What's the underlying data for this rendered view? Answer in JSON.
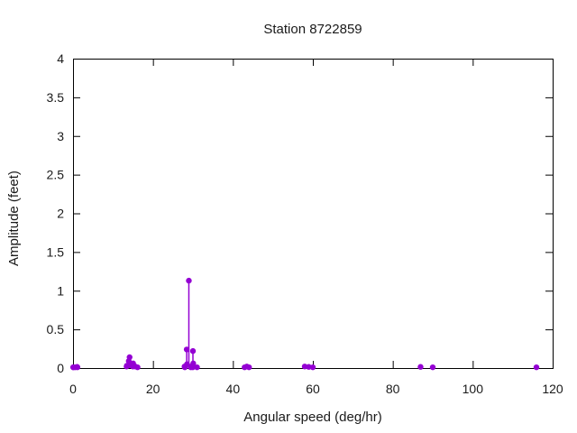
{
  "chart_data": {
    "type": "scatter",
    "style": "impulses+points",
    "title": "Station 8722859",
    "xlabel": "Angular speed (deg/hr)",
    "ylabel": "Amplitude (feet)",
    "xlim": [
      0,
      120
    ],
    "ylim": [
      0,
      4
    ],
    "grid": false,
    "legend": "none",
    "point_color": "#9400d3",
    "axis_color": "#000000",
    "xticks": {
      "values": [
        0,
        20,
        40,
        60,
        80,
        100,
        120
      ],
      "labels": [
        "0",
        "20",
        "40",
        "60",
        "80",
        "100",
        "120"
      ]
    },
    "yticks": {
      "values": [
        0,
        0.5,
        1,
        1.5,
        2,
        2.5,
        3,
        3.5,
        4
      ],
      "labels": [
        "0",
        "0.5",
        "1",
        "1.5",
        "2",
        "2.5",
        "3",
        "3.5",
        "4"
      ]
    },
    "series": [
      {
        "name": "tidal-harmonic-constituents",
        "points": [
          [
            0.04,
            0.01
          ],
          [
            0.08,
            0.01
          ],
          [
            0.54,
            0.01
          ],
          [
            1.02,
            0.015
          ],
          [
            1.1,
            0.01
          ],
          [
            13.4,
            0.02
          ],
          [
            13.47,
            0.03
          ],
          [
            13.94,
            0.09
          ],
          [
            14.15,
            0.14
          ],
          [
            14.5,
            0.05
          ],
          [
            14.96,
            0.02
          ],
          [
            15.04,
            0.06
          ],
          [
            15.59,
            0.02
          ],
          [
            16.14,
            0.01
          ],
          [
            27.9,
            0.02
          ],
          [
            27.97,
            0.01
          ],
          [
            28.44,
            0.24
          ],
          [
            28.51,
            0.05
          ],
          [
            28.98,
            1.13
          ],
          [
            29.46,
            0.01
          ],
          [
            29.53,
            0.02
          ],
          [
            29.96,
            0.01
          ],
          [
            30.0,
            0.22
          ],
          [
            30.08,
            0.06
          ],
          [
            31.02,
            0.01
          ],
          [
            42.93,
            0.01
          ],
          [
            43.48,
            0.02
          ],
          [
            44.03,
            0.01
          ],
          [
            57.97,
            0.02
          ],
          [
            58.98,
            0.015
          ],
          [
            60.0,
            0.01
          ],
          [
            86.95,
            0.015
          ],
          [
            90.0,
            0.01
          ],
          [
            115.94,
            0.01
          ]
        ]
      }
    ]
  }
}
